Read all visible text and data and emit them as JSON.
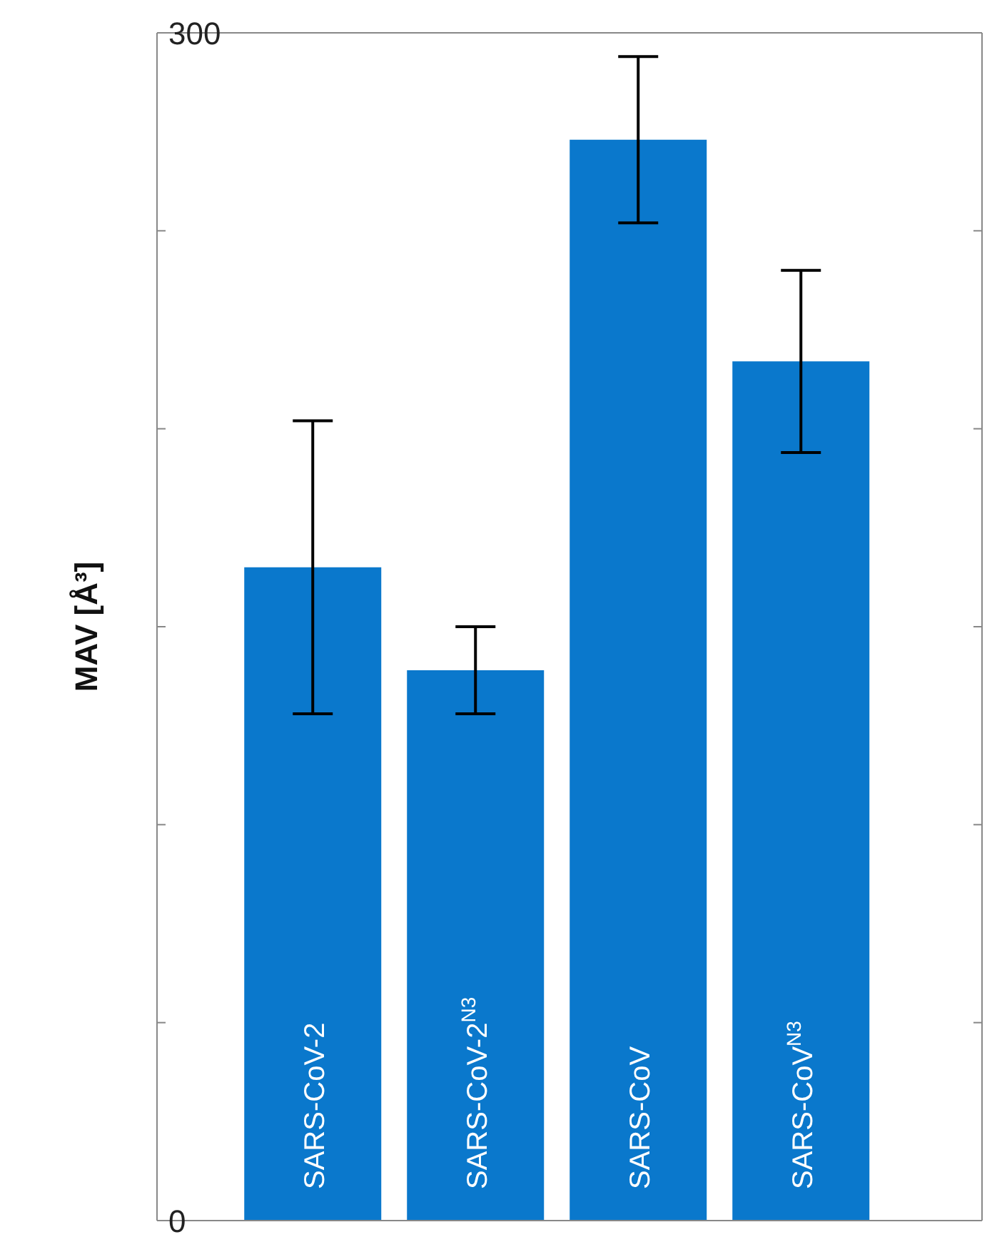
{
  "chart_data": {
    "type": "bar",
    "ylabel": "MAV [Å³]",
    "categories": [
      "SARS-CoV-2",
      "SARS-CoV-2$^{N3}$",
      "SARS-CoV",
      "SARS-CoV$^{N3}$"
    ],
    "values": [
      165,
      139,
      273,
      217
    ],
    "errors": [
      37,
      11,
      21,
      23
    ],
    "color": "#0a78cc",
    "ylim": [
      0,
      300
    ],
    "yticks": [
      0,
      {
        "value": 50,
        "label": null
      },
      {
        "value": 100,
        "label": null
      },
      {
        "value": 150,
        "label": null
      },
      {
        "value": 200,
        "label": null
      },
      {
        "value": 250,
        "label": null
      },
      300
    ],
    "grid": false
  }
}
